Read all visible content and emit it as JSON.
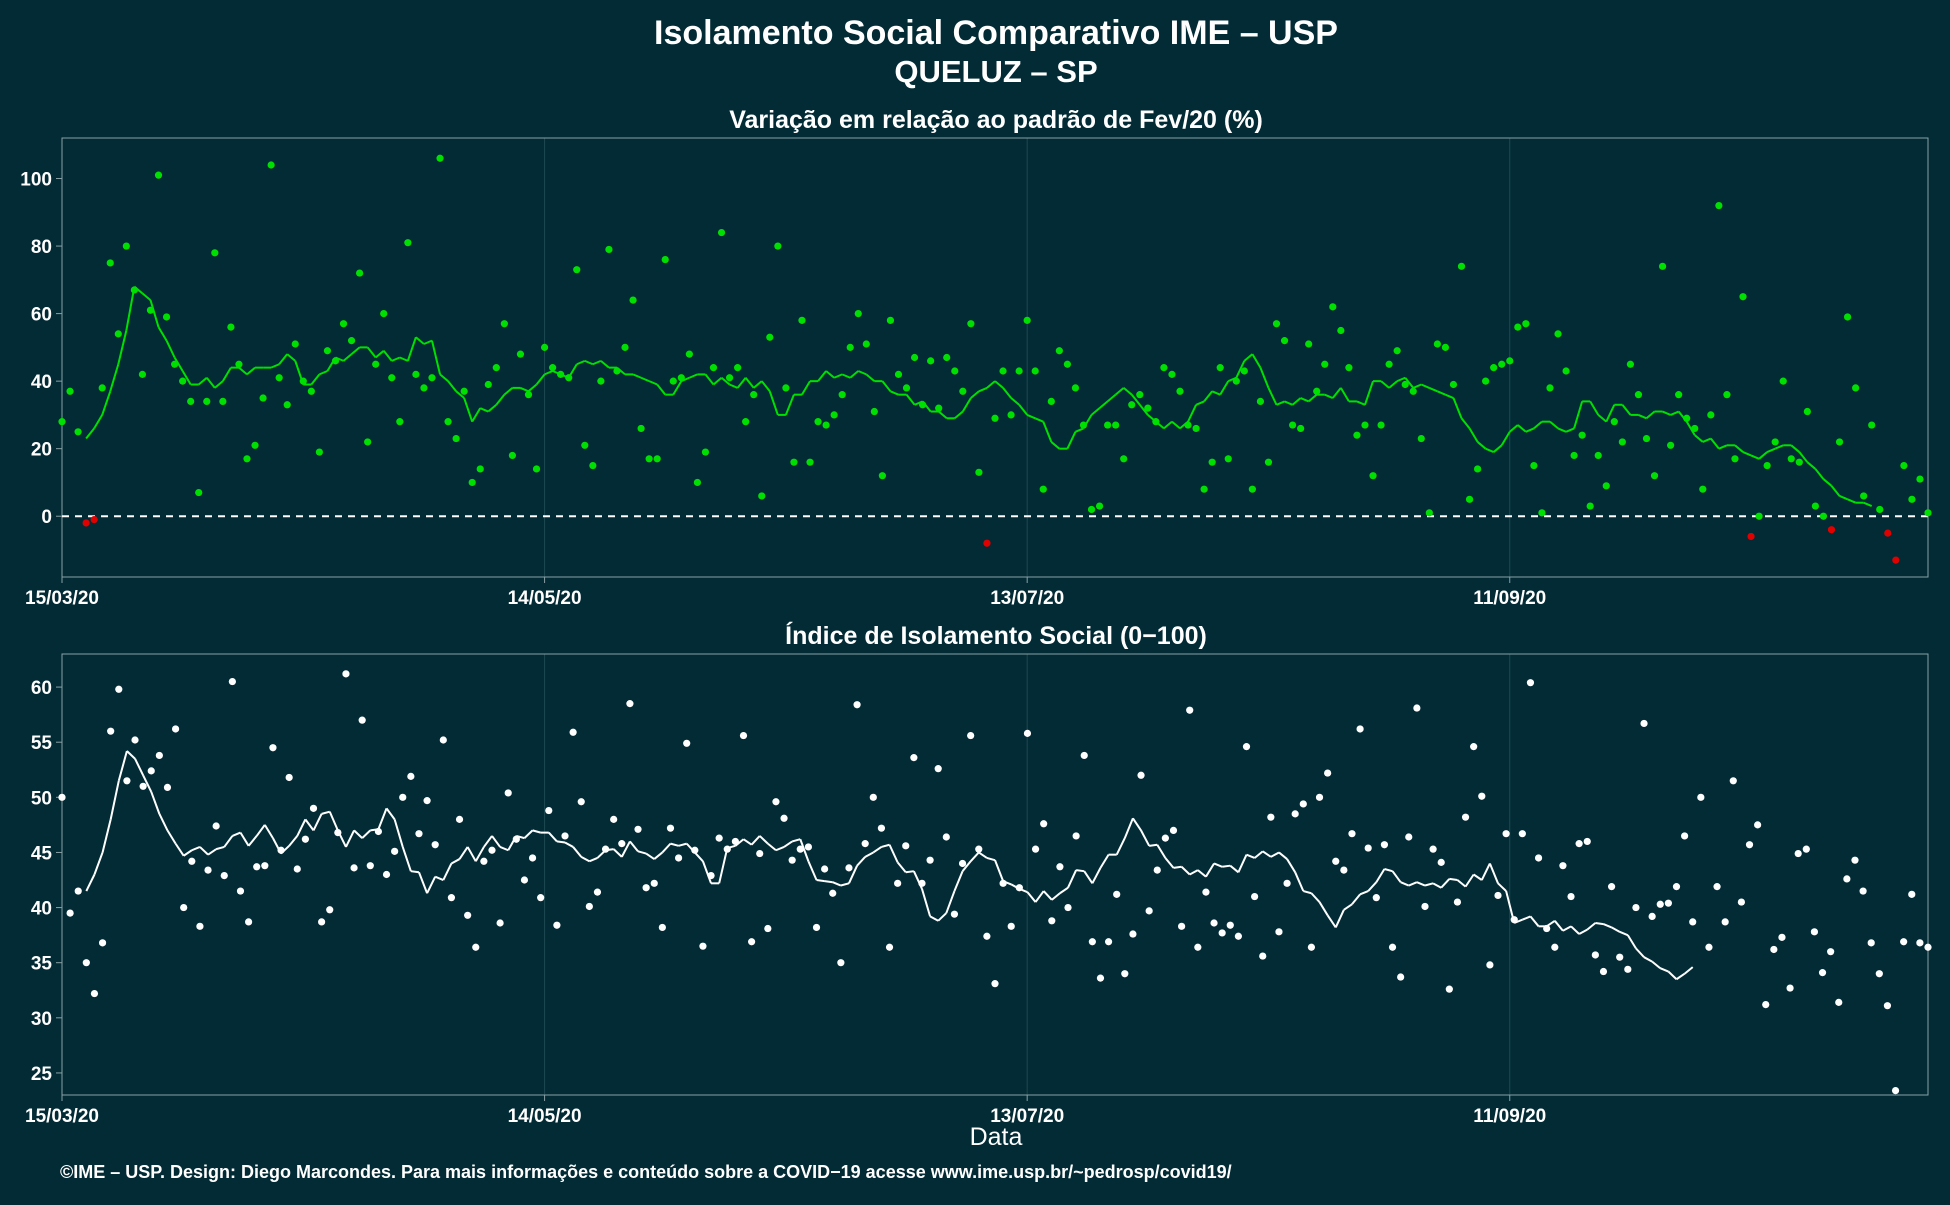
{
  "header": {
    "title": "Isolamento Social Comparativo IME – USP",
    "subtitle": "QUELUZ – SP"
  },
  "footer": {
    "xlabel": "Data",
    "credits": "©IME – USP. Design: Diego Marcondes. Para mais informações e conteúdo sobre a COVID−19 acesse www.ime.usp.br/~pedrosp/covid19/"
  },
  "colors": {
    "background": "#022b35",
    "grid": "#1f4952",
    "axis": "#8aa0a5",
    "positive": "#00e000",
    "negative": "#e00000",
    "index": "#ffffff"
  },
  "chart_data": [
    {
      "type": "scatter",
      "title": "Variação em relação ao padrão de Fev/20 (%)",
      "xlabel": "",
      "ylabel": "",
      "x_start": "15/03/20",
      "x_tick_labels": [
        "15/03/20",
        "14/05/20",
        "13/07/20",
        "11/09/20"
      ],
      "x_tick_days": [
        0,
        60,
        120,
        180
      ],
      "xlim_days": [
        0,
        232
      ],
      "ylim": [
        -18,
        112
      ],
      "y_ticks": [
        0,
        20,
        40,
        60,
        80,
        100
      ],
      "reference_line": 0,
      "grid": true,
      "series": [
        {
          "kind": "points",
          "values": [
            28,
            37,
            25,
            -2,
            -1,
            38,
            75,
            54,
            80,
            67,
            42,
            61,
            101,
            59,
            45,
            40,
            34,
            7,
            34,
            78,
            34,
            56,
            45,
            17,
            21,
            35,
            104,
            41,
            33,
            51,
            40,
            37,
            19,
            49,
            46,
            57,
            52,
            72,
            22,
            45,
            60,
            41,
            28,
            81,
            42,
            38,
            41,
            106,
            28,
            23,
            37,
            10,
            14,
            39,
            44,
            57,
            18,
            48,
            36,
            14,
            50,
            44,
            42,
            41,
            73,
            21,
            15,
            40,
            79,
            43,
            50,
            64,
            26,
            17,
            17,
            76,
            40,
            41,
            48,
            10,
            19,
            44,
            84,
            41,
            44,
            28,
            36,
            6,
            53,
            80,
            38,
            16,
            58,
            16,
            28,
            27,
            30,
            36,
            50,
            60,
            51,
            31,
            12,
            58,
            42,
            38,
            47,
            33,
            46,
            32,
            47,
            43,
            37,
            57,
            13,
            -8,
            29,
            43,
            30,
            43,
            58,
            43,
            8,
            34,
            49,
            45,
            38,
            27,
            2,
            3,
            27,
            27,
            17,
            33,
            36,
            32,
            28,
            44,
            42,
            37,
            27,
            26,
            8,
            16,
            44,
            17,
            40,
            43,
            8,
            34,
            16,
            57,
            52,
            27,
            26,
            51,
            37,
            45,
            62,
            55,
            44,
            24,
            27,
            12,
            27,
            45,
            49,
            39,
            37,
            23,
            1,
            51,
            50,
            39,
            74,
            5,
            14,
            40,
            44,
            45,
            46,
            56,
            57,
            15,
            1,
            38,
            54,
            43,
            18,
            24,
            3,
            18,
            9,
            28,
            22,
            45,
            36,
            23,
            12,
            74,
            21,
            36,
            29,
            26,
            8,
            30,
            92,
            36,
            17,
            65,
            -6,
            0,
            15,
            22,
            40,
            17,
            16,
            31,
            3,
            0,
            -4,
            22,
            59,
            38,
            6,
            27,
            2,
            -5,
            -13,
            15,
            5,
            11,
            1
          ]
        },
        {
          "kind": "moving-average",
          "values": [
            null,
            null,
            null,
            23,
            26,
            30,
            37,
            45,
            55,
            68,
            66,
            64,
            56,
            52,
            47,
            43,
            39,
            39,
            41,
            38,
            40,
            44,
            44,
            42,
            44,
            44,
            44,
            45,
            48,
            46,
            39,
            39,
            42,
            43,
            47,
            46,
            48,
            50,
            50,
            47,
            49,
            46,
            47,
            46,
            53,
            51,
            52,
            42,
            40,
            37,
            35,
            28,
            32,
            31,
            33,
            36,
            38,
            38,
            37,
            39,
            42,
            43,
            42,
            41,
            45,
            46,
            45,
            46,
            44,
            44,
            42,
            42,
            41,
            40,
            39,
            36,
            36,
            40,
            41,
            42,
            42,
            39,
            41,
            39,
            38,
            41,
            38,
            40,
            37,
            30,
            30,
            36,
            36,
            40,
            40,
            43,
            41,
            42,
            41,
            43,
            42,
            40,
            40,
            37,
            36,
            36,
            33,
            34,
            31,
            31,
            29,
            29,
            31,
            35,
            37,
            38,
            40,
            38,
            35,
            33,
            30,
            29,
            28,
            22,
            20,
            20,
            25,
            26,
            30,
            32,
            34,
            36,
            38,
            36,
            33,
            30,
            28,
            26,
            28,
            26,
            28,
            33,
            34,
            37,
            36,
            40,
            41,
            46,
            48,
            44,
            38,
            33,
            34,
            33,
            35,
            34,
            36,
            36,
            35,
            38,
            34,
            34,
            33,
            40,
            40,
            38,
            40,
            41,
            38,
            39,
            38,
            37,
            36,
            35,
            29,
            26,
            22,
            20,
            19,
            21,
            25,
            27,
            25,
            26,
            28,
            28,
            26,
            25,
            26,
            34,
            34,
            30,
            28,
            33,
            33,
            30,
            30,
            29,
            31,
            31,
            30,
            31,
            28,
            24,
            22,
            23,
            20,
            21,
            21,
            19,
            18,
            17,
            19,
            20,
            21,
            21,
            19,
            16,
            14,
            11,
            9,
            6,
            5,
            4,
            4,
            3
          ]
        }
      ]
    },
    {
      "type": "scatter",
      "title": "Índice de Isolamento Social (0−100)",
      "xlabel": "Data",
      "ylabel": "",
      "x_start": "15/03/20",
      "x_tick_labels": [
        "15/03/20",
        "14/05/20",
        "13/07/20",
        "11/09/20"
      ],
      "x_tick_days": [
        0,
        60,
        120,
        180
      ],
      "xlim_days": [
        0,
        232
      ],
      "ylim": [
        23,
        63
      ],
      "y_ticks": [
        25,
        30,
        35,
        40,
        45,
        50,
        55,
        60
      ],
      "grid": true,
      "series": [
        {
          "kind": "points",
          "values": [
            50,
            39.5,
            41.5,
            35,
            32.2,
            36.8,
            56,
            59.8,
            51.5,
            55.2,
            51,
            52.4,
            53.8,
            50.9,
            56.2,
            40,
            44.2,
            38.3,
            43.4,
            47.4,
            42.9,
            60.5,
            41.5,
            38.7,
            43.7,
            43.8,
            54.5,
            45.2,
            51.8,
            43.5,
            46.2,
            49,
            38.7,
            39.8,
            46.8,
            61.2,
            43.6,
            57,
            43.8,
            46.9,
            43,
            45.1,
            50,
            51.9,
            46.7,
            49.7,
            45.7,
            55.2,
            40.9,
            48,
            39.3,
            36.4,
            44.2,
            45.2,
            38.6,
            50.4,
            46.2,
            42.5,
            44.5,
            40.9,
            48.8,
            38.4,
            46.5,
            55.9,
            49.6,
            40.1,
            41.4,
            45.3,
            48,
            45.8,
            58.5,
            47.1,
            41.8,
            42.2,
            38.2,
            47.2,
            44.5,
            54.9,
            45.2,
            36.5,
            42.9,
            46.3,
            45.3,
            46,
            55.6,
            36.9,
            44.9,
            38.1,
            49.6,
            48.1,
            44.3,
            45.3,
            45.5,
            38.2,
            43.5,
            41.3,
            35,
            43.6,
            58.4,
            45.8,
            50,
            47.2,
            36.4,
            42.2,
            45.6,
            53.6,
            42.2,
            44.3,
            52.6,
            46.4,
            39.4,
            44,
            55.6,
            45.3,
            37.4,
            33.1,
            42.2,
            38.3,
            41.8,
            55.8,
            45.3,
            47.6,
            38.8,
            43.7,
            40,
            46.5,
            53.8,
            36.9,
            33.6,
            36.9,
            41.2,
            34,
            37.6,
            52,
            39.7,
            43.4,
            46.3,
            47,
            38.3,
            57.9,
            36.4,
            41.4,
            38.6,
            37.7,
            38.4,
            37.4,
            54.6,
            41,
            35.6,
            48.2,
            37.8,
            42.2,
            48.5,
            49.4,
            36.4,
            50,
            52.2,
            44.2,
            43.4,
            46.7,
            56.2,
            45.4,
            40.9,
            45.7,
            36.4,
            33.7,
            46.4,
            58.1,
            40.1,
            45.3,
            44.1,
            32.6,
            40.5,
            48.2,
            54.6,
            50.1,
            34.8,
            41.1,
            46.7,
            38.9,
            46.7,
            60.4,
            44.5,
            38.1,
            36.4,
            43.8,
            41,
            45.8,
            46,
            35.7,
            34.2,
            41.9,
            35.5,
            34.4,
            40,
            56.7,
            39.2,
            40.3,
            40.4,
            41.9,
            46.5,
            38.7,
            50,
            36.4,
            41.9,
            38.7,
            51.5,
            40.5,
            45.7,
            47.5,
            31.2,
            36.2,
            37.3,
            32.7,
            44.9,
            45.3,
            37.8,
            34.1,
            36,
            31.4,
            42.6,
            44.3,
            41.5,
            36.8,
            34,
            31.1,
            23.4,
            36.9,
            41.2,
            36.8,
            36.4
          ]
        },
        {
          "kind": "moving-average",
          "values": [
            null,
            null,
            null,
            41.5,
            43,
            45,
            48,
            51.5,
            54.2,
            53.5,
            52,
            50.5,
            48.5,
            47,
            45.8,
            44.7,
            45.2,
            45.5,
            44.8,
            45.3,
            45.5,
            46.5,
            46.8,
            45.6,
            46.5,
            47.5,
            46.3,
            44.9,
            45.6,
            46.5,
            48,
            47,
            48.5,
            48.7,
            47,
            45.5,
            47,
            46.3,
            47,
            47.1,
            49,
            48,
            45.5,
            43.3,
            43.2,
            41.3,
            42.8,
            42.5,
            44,
            44.4,
            45.5,
            44.2,
            45.5,
            46.5,
            45.5,
            45.2,
            46.5,
            46.3,
            47,
            46.8,
            46.8,
            46,
            45.9,
            45.5,
            44.6,
            44.2,
            44.5,
            45.2,
            45.3,
            44.6,
            46,
            45.1,
            44.9,
            44.4,
            45,
            45.8,
            45.6,
            45.8,
            45,
            44.2,
            42.2,
            42.2,
            45.4,
            45.6,
            46.2,
            45.7,
            46.5,
            45.8,
            45.2,
            45.5,
            46,
            46.2,
            44.2,
            42.5,
            42.4,
            42.3,
            42,
            42.2,
            43.8,
            44.6,
            45,
            45.5,
            45.7,
            44.1,
            43.2,
            43.3,
            41.7,
            39.2,
            38.8,
            39.5,
            41.5,
            43.3,
            44.2,
            45,
            44.5,
            44.3,
            42.4,
            42.1,
            41.7,
            41.4,
            40.5,
            41.5,
            40.7,
            41.3,
            41.8,
            43.4,
            43.3,
            42.2,
            43.6,
            44.8,
            44.8,
            46.3,
            48.1,
            47,
            45.6,
            45.7,
            44.5,
            43.6,
            43.7,
            43,
            43.4,
            42.8,
            44,
            43.7,
            43.8,
            43.2,
            44.8,
            44.5,
            45.1,
            44.6,
            45,
            44.4,
            43.2,
            41.5,
            41.3,
            40.5,
            39.3,
            38.2,
            39.8,
            40.3,
            41.2,
            41.5,
            42.3,
            43.5,
            43.3,
            42.3,
            42,
            42.3,
            42,
            42.2,
            41.8,
            42.6,
            42.5,
            41.9,
            43,
            42.5,
            44,
            42.2,
            41.5,
            38.6,
            38.9,
            39.2,
            38.3,
            38.3,
            38.8,
            37.9,
            38.3,
            37.6,
            38,
            38.6,
            38.5,
            38.2,
            37.8,
            37.5,
            36.3,
            35.5,
            35.1,
            34.5,
            34.2,
            33.5,
            34,
            34.6
          ]
        }
      ]
    }
  ]
}
